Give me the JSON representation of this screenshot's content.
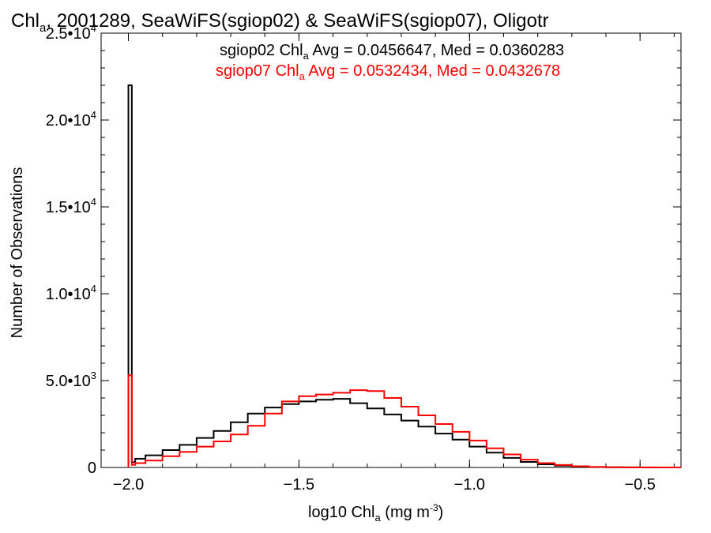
{
  "chart_data": {
    "type": "line",
    "step": true,
    "title": {
      "prefix": "Chl",
      "sub": "a",
      "suffix": ", 2001289, SeaWiFS(sgiop02) & SeaWiFS(sgiop07), Oligotr"
    },
    "xlabel": {
      "prefix": "log10 Chl",
      "sub": "a",
      "suffix": " (mg m",
      "sup": "-3",
      "end": ")"
    },
    "ylabel": "Number of Observations",
    "xlim": [
      -2.08,
      -0.38
    ],
    "ylim": [
      0,
      25000
    ],
    "x_ticks": [
      {
        "value": -2.0,
        "label": "−2.0"
      },
      {
        "value": -1.5,
        "label": "−1.5"
      },
      {
        "value": -1.0,
        "label": "−1.0"
      },
      {
        "value": -0.5,
        "label": "−0.5"
      }
    ],
    "y_ticks": [
      {
        "value": 0,
        "mant": "0",
        "exp": ""
      },
      {
        "value": 5000,
        "mant": "5.0•10",
        "exp": "3"
      },
      {
        "value": 10000,
        "mant": "1.0•10",
        "exp": "4"
      },
      {
        "value": 15000,
        "mant": "1.5•10",
        "exp": "4"
      },
      {
        "value": 20000,
        "mant": "2.0•10",
        "exp": "4"
      },
      {
        "value": 25000,
        "mant": "2.5•10",
        "exp": "4"
      }
    ],
    "stats": [
      {
        "prefix": "sgiop02 Chl",
        "sub": "a",
        "suffix": " Avg = 0.0456647, Med = 0.0360283",
        "color": "#000000"
      },
      {
        "prefix": "sgiop07 Chl",
        "sub": "a",
        "suffix": " Avg = 0.0532434, Med = 0.0432678",
        "color": "#ff0000"
      }
    ],
    "series": [
      {
        "name": "sgiop02",
        "color": "#000000",
        "x": [
          -2.0,
          -1.99,
          -1.98,
          -1.95,
          -1.9,
          -1.85,
          -1.8,
          -1.75,
          -1.7,
          -1.65,
          -1.6,
          -1.55,
          -1.5,
          -1.45,
          -1.4,
          -1.35,
          -1.3,
          -1.25,
          -1.2,
          -1.15,
          -1.1,
          -1.05,
          -1.0,
          -0.95,
          -0.9,
          -0.85,
          -0.8,
          -0.75,
          -0.7,
          -0.65,
          -0.6,
          -0.55,
          -0.5,
          -0.45,
          -0.38
        ],
        "y": [
          22000,
          300,
          500,
          700,
          1000,
          1300,
          1700,
          2100,
          2600,
          3100,
          3450,
          3650,
          3800,
          3900,
          3950,
          3700,
          3400,
          3050,
          2700,
          2350,
          1950,
          1600,
          1200,
          850,
          550,
          320,
          180,
          100,
          50,
          25,
          10,
          5,
          2,
          0,
          0
        ]
      },
      {
        "name": "sgiop07",
        "color": "#ff0000",
        "x": [
          -2.0,
          -1.99,
          -1.98,
          -1.95,
          -1.9,
          -1.85,
          -1.8,
          -1.75,
          -1.7,
          -1.65,
          -1.6,
          -1.55,
          -1.5,
          -1.45,
          -1.4,
          -1.35,
          -1.3,
          -1.25,
          -1.2,
          -1.15,
          -1.1,
          -1.05,
          -1.0,
          -0.95,
          -0.9,
          -0.85,
          -0.8,
          -0.75,
          -0.7,
          -0.65,
          -0.6,
          -0.55,
          -0.5,
          -0.45,
          -0.38
        ],
        "y": [
          5300,
          150,
          250,
          400,
          650,
          900,
          1200,
          1500,
          1900,
          2400,
          3100,
          3800,
          4100,
          4200,
          4300,
          4450,
          4400,
          4000,
          3500,
          3000,
          2500,
          2050,
          1550,
          1100,
          750,
          450,
          250,
          140,
          70,
          35,
          15,
          7,
          3,
          0,
          0
        ]
      }
    ]
  }
}
